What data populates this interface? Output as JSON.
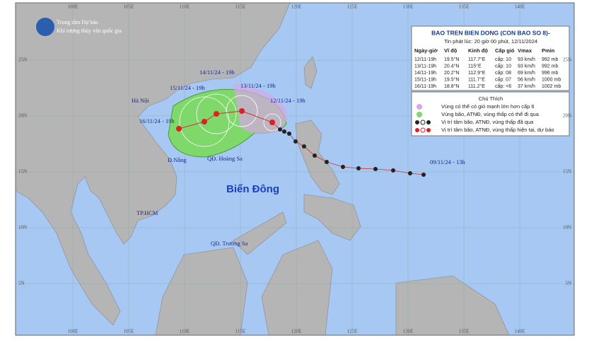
{
  "header": {
    "org": "Trung tâm Dự báo",
    "suborg": "Khí tượng thủy văn quốc gia"
  },
  "info_box": {
    "title": "BAO TREN BIEN DONG (CON BAO SO 8)-",
    "subtitle": "Tin phát lúc: 20 giờ 00 phút, 12/11/2024",
    "columns": [
      "Ngày-giờ",
      "Vĩ độ",
      "Kinh độ",
      "Cấp gió",
      "Vmax",
      "Pmin"
    ],
    "rows": [
      [
        "12/11-19h",
        "19.5°N",
        "117.7°E",
        "cấp: 10",
        "93 km/h",
        "992 mb"
      ],
      [
        "13/11-19h",
        "20.4°N",
        "115°E",
        "cấp: 10",
        "93 km/h",
        "992 mb"
      ],
      [
        "14/11-19h",
        "20.2°N",
        "112.9°E",
        "cấp: 08",
        "69 km/h",
        "996 mb"
      ],
      [
        "15/11-19h",
        "19.5°N",
        "111.7°E",
        "cấp: 07",
        "56 km/h",
        "1000 mb"
      ],
      [
        "16/11-19h",
        "18.8°N",
        "111.2°E",
        "cấp: <6",
        "37 km/h",
        "1002 mb"
      ]
    ]
  },
  "legend": {
    "title": "Chú Thích",
    "items": [
      "Vùng có thể có gió mạnh lớn hơn cấp 6",
      "Vùng bão, ATNĐ, vùng thấp có thể đi qua",
      "Vị trí tâm bão, ATNĐ, vùng thấp đã qua",
      "Vị trí tâm bão, ATNĐ, vùng thấp hiện tại, dự báo"
    ]
  },
  "track_labels": [
    "14/11/24 - 19h",
    "15/11/24 - 19h",
    "13/11/24 - 19h",
    "12/11/24 - 19h",
    "16/11/24 - 19h",
    "09/11/24 - 13h"
  ],
  "places": [
    "Hà Nội",
    "Đ.Nẵng",
    "QĐ. Hoàng Sa",
    "Biển Đông",
    "TP.HCM",
    "QĐ. Trường Sa"
  ],
  "lon_labels": [
    "100E",
    "105E",
    "110E",
    "115E",
    "120E",
    "125E",
    "130E",
    "135E",
    "140E"
  ],
  "lat_labels": [
    "25N",
    "20N",
    "15N",
    "10N",
    "5N"
  ]
}
